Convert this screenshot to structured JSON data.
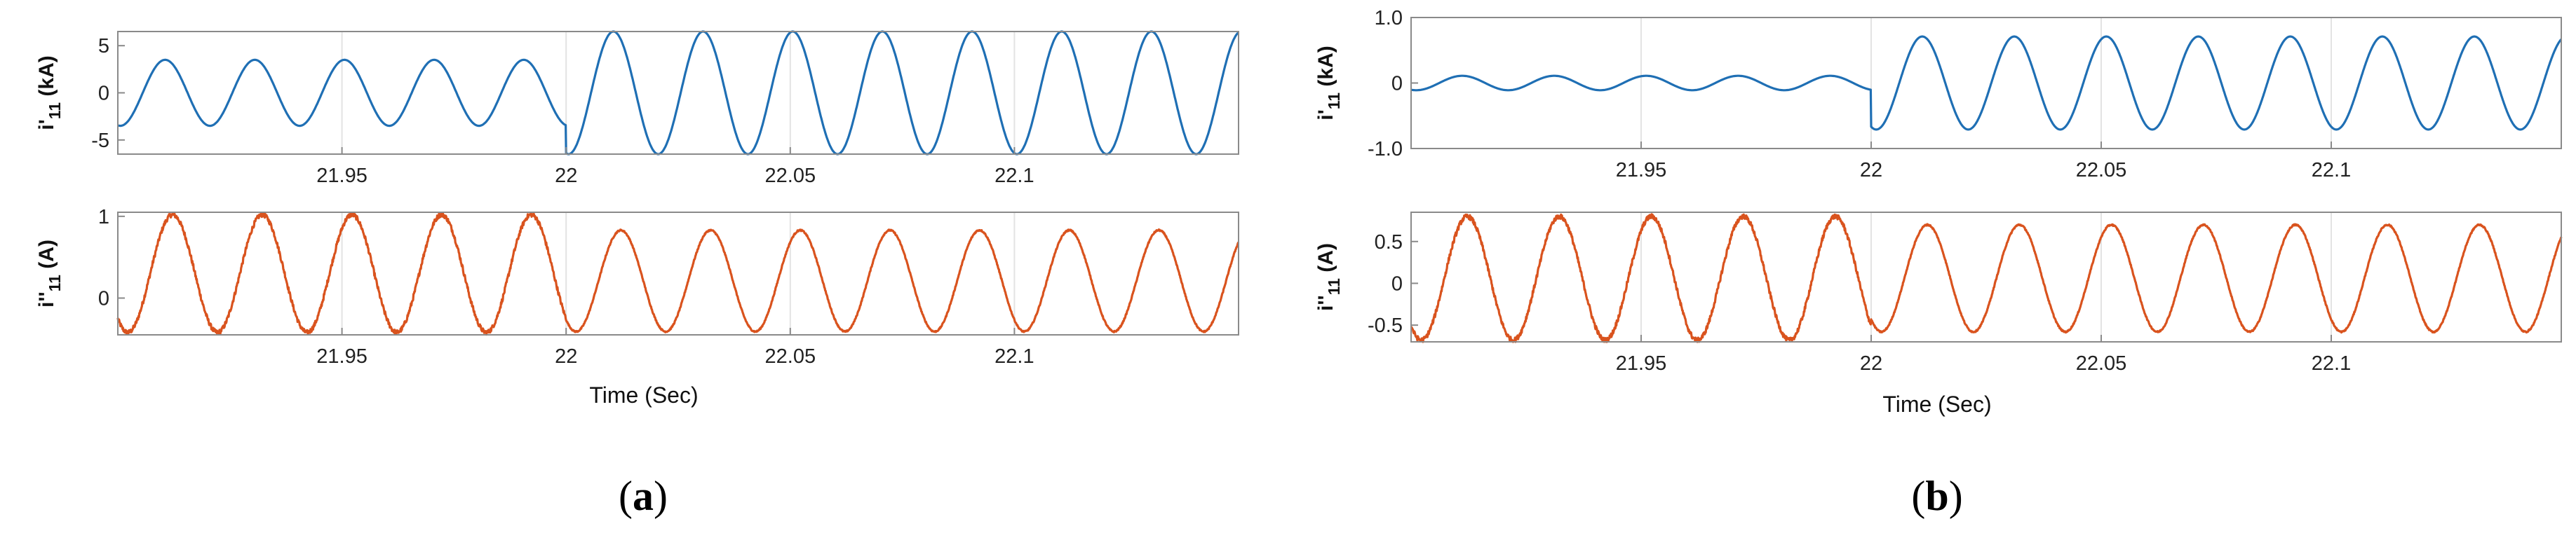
{
  "colors": {
    "blue": "#1f6fb4",
    "orange": "#d9531e"
  },
  "figure": {
    "panels": [
      {
        "label_open": "(",
        "label_letter": "a",
        "label_close": ")",
        "xlabel": "Time  (Sec)"
      },
      {
        "label_open": "(",
        "label_letter": "b",
        "label_close": ")",
        "xlabel": "Time (Sec)"
      }
    ]
  },
  "chart_data": [
    {
      "type": "line",
      "panel": "a",
      "position": "top",
      "ylabel_main": "i'",
      "ylabel_sub": "11",
      "ylabel_unit": " (kA)",
      "xlim": [
        21.9,
        22.15
      ],
      "ylim": [
        -6.5,
        6.5
      ],
      "yticks": [
        5,
        0,
        -5
      ],
      "yticklabels": [
        "5",
        "0",
        "-5"
      ],
      "xticks": [
        21.95,
        22,
        22.05,
        22.1
      ],
      "xticklabels": [
        "21.95",
        "22",
        "22.05",
        "22.1"
      ],
      "series": [
        {
          "color": "blue",
          "frequency_hz": 50,
          "phase_deg": -100,
          "amplitude_before": 3.5,
          "amplitude_after": 6.5,
          "step_time": 22.0,
          "noise": 0.0
        }
      ]
    },
    {
      "type": "line",
      "panel": "a",
      "position": "bottom",
      "ylabel_main": "i''",
      "ylabel_sub": "11",
      "ylabel_unit": " (A)",
      "xlim": [
        21.9,
        22.15
      ],
      "ylim": [
        -0.45,
        1.05
      ],
      "yticks": [
        1,
        0
      ],
      "yticklabels": [
        "1",
        "0"
      ],
      "xticks": [
        21.95,
        22,
        22.05,
        22.1
      ],
      "xticklabels": [
        "21.95",
        "22",
        "22.05",
        "22.1"
      ],
      "series": [
        {
          "color": "orange",
          "frequency_hz": 50,
          "phase_deg": -130,
          "offset_before": 0.3,
          "amplitude_before": 0.72,
          "offset_after": 0.21,
          "amplitude_after": 0.62,
          "step_time": 22.0,
          "noise": 0.035
        }
      ]
    },
    {
      "type": "line",
      "panel": "b",
      "position": "top",
      "ylabel_main": "i'",
      "ylabel_sub": "11",
      "ylabel_unit": " (kA)",
      "xlim": [
        21.9,
        22.15
      ],
      "ylim": [
        -1.0,
        1.0
      ],
      "yticks": [
        1.0,
        0,
        -1.0
      ],
      "yticklabels": [
        "1.0",
        "0",
        "-1.0"
      ],
      "xticks": [
        21.95,
        22,
        22.05,
        22.1
      ],
      "xticklabels": [
        "21.95",
        "22",
        "22.05",
        "22.1"
      ],
      "series": [
        {
          "color": "blue",
          "frequency_hz": 50,
          "phase_deg": -110,
          "amplitude_before": 0.11,
          "amplitude_after": 0.71,
          "step_time": 22.0,
          "noise": 0.0
        }
      ]
    },
    {
      "type": "line",
      "panel": "b",
      "position": "bottom",
      "ylabel_main": "i''",
      "ylabel_sub": "11",
      "ylabel_unit": " (A)",
      "xlim": [
        21.9,
        22.15
      ],
      "ylim": [
        -0.7,
        0.85
      ],
      "yticks": [
        0.5,
        0,
        -0.5
      ],
      "yticklabels": [
        "0.5",
        "0",
        "-0.5"
      ],
      "xticks": [
        21.95,
        22,
        22.05,
        22.1
      ],
      "xticklabels": [
        "21.95",
        "22",
        "22.05",
        "22.1"
      ],
      "series": [
        {
          "color": "orange",
          "frequency_hz": 50,
          "phase_deg": -130,
          "offset_before": 0.06,
          "amplitude_before": 0.74,
          "offset_after": 0.06,
          "amplitude_after": 0.64,
          "step_time": 22.0,
          "noise": 0.035
        }
      ]
    }
  ]
}
